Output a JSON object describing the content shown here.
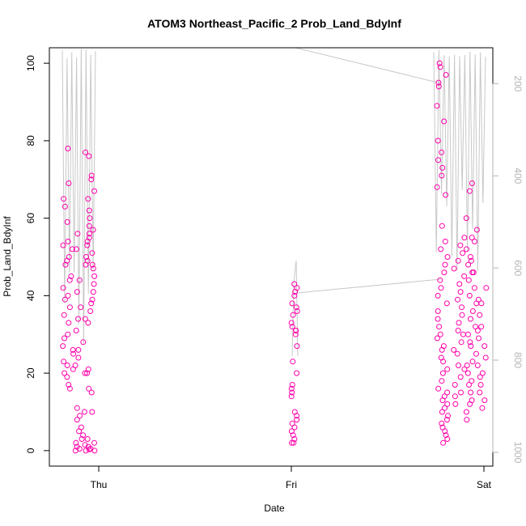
{
  "chart_data": {
    "type": "scatter",
    "title": "ATOM3 Northeast_Pacific_2 Prob_Land_BdyInf",
    "xlabel": "Date",
    "ylabel": "Prob_Land_BdyInf",
    "x_ticks": [
      "Thu",
      "Fri",
      "Sat"
    ],
    "ylim": [
      -4,
      104
    ],
    "y_ticks": [
      0,
      20,
      40,
      60,
      80,
      100
    ],
    "y2_ticks": [
      200,
      400,
      600,
      800,
      1000
    ],
    "y2lim": [
      1030,
      122
    ],
    "grid": false,
    "colors": {
      "points": "#ff00aa",
      "line": "#c8c8c8",
      "axis": "#000000",
      "axis_right": "#b4b4b4"
    },
    "series": [
      {
        "marker": "open-circle",
        "clusters": [
          {
            "x": "Thu",
            "values": [
              78,
              69,
              65,
              63,
              59,
              54,
              53,
              52,
              50,
              49,
              48,
              45,
              44,
              42,
              40,
              39,
              37,
              35,
              33,
              30,
              29,
              27,
              26,
              25,
              23,
              22,
              21,
              20,
              19,
              17,
              16,
              56,
              52,
              48,
              44,
              41,
              37,
              34,
              31,
              28,
              26,
              24,
              22,
              20,
              11,
              10,
              9,
              8,
              6,
              5,
              4,
              3,
              2,
              1,
              0.5,
              0,
              77,
              76,
              71,
              70,
              67,
              65,
              62,
              60,
              58,
              57,
              56,
              55,
              54,
              53,
              51,
              50,
              49,
              48,
              47,
              45,
              43,
              41,
              39,
              38,
              36,
              34,
              33,
              21,
              20,
              16,
              15,
              10,
              3,
              2,
              1.5,
              1,
              0.5,
              0.3,
              0,
              0,
              83,
              77,
              71,
              64,
              60,
              58,
              56,
              54,
              52,
              50,
              48,
              46,
              43,
              25,
              18,
              16,
              13,
              8,
              2,
              1,
              0
            ]
          },
          {
            "x": "Fri",
            "values": [
              43,
              42,
              41,
              40,
              38,
              37,
              36,
              35,
              33,
              32,
              31,
              31,
              30,
              27,
              23,
              20,
              17,
              16,
              15,
              14,
              10,
              9,
              8,
              7,
              6,
              5,
              4,
              3,
              2,
              2
            ]
          },
          {
            "x": "Sat",
            "values": [
              100,
              99,
              97,
              95,
              94,
              89,
              85,
              80,
              77,
              75,
              73,
              71,
              68,
              66,
              58,
              54,
              52,
              50,
              48,
              46,
              44,
              42,
              40,
              38,
              36,
              34,
              32,
              30,
              29,
              27,
              26,
              24,
              23,
              21,
              20,
              18,
              16,
              15,
              14,
              13,
              12,
              11,
              10,
              9,
              8,
              7,
              6,
              5,
              4,
              3,
              2,
              55,
              53,
              51,
              49,
              47,
              45,
              43,
              41,
              39,
              37,
              35,
              33,
              31,
              30,
              28,
              26,
              25,
              22,
              21,
              19,
              17,
              15,
              14,
              12,
              69,
              67,
              60,
              57,
              55,
              52,
              50,
              48,
              46,
              44,
              42,
              40,
              38,
              36,
              34,
              32,
              30,
              28,
              27,
              25,
              23,
              22,
              20,
              18,
              17,
              15,
              13,
              12,
              10,
              8,
              54,
              49,
              46,
              42,
              39,
              38,
              35,
              32,
              31,
              29,
              27,
              24,
              22,
              20,
              19,
              17,
              15,
              13,
              11
            ]
          }
        ]
      }
    ]
  }
}
